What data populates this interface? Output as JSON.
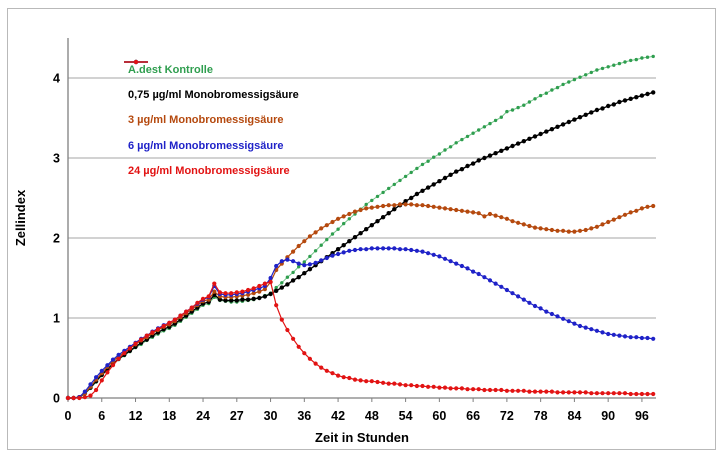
{
  "figure": {
    "background": "#ffffff",
    "border_color": "#b9b9b9"
  },
  "chart_data": {
    "type": "line",
    "title": "",
    "xlabel": "Zeit in Stunden",
    "ylabel": "Zellindex",
    "ylim": [
      0,
      4.5
    ],
    "yticks": [
      0,
      1,
      2,
      3,
      4
    ],
    "xticks": [
      "0",
      "6",
      "12",
      "18",
      "24",
      "27",
      "30",
      "36",
      "42",
      "48",
      "54",
      "60",
      "66",
      "72",
      "78",
      "84",
      "90",
      "96"
    ],
    "x_axis_note": "category axis in hours: 1 h steps 0-24 h, 0.5 h steps 24-30 h, 1 h steps 30-98 h",
    "grid": "horizontal",
    "legend_position": "top-left-inside",
    "axis_color": "#7f7f7f",
    "grid_color": "#a6a6a6",
    "hours": [
      0,
      1,
      2,
      3,
      4,
      5,
      6,
      7,
      8,
      9,
      10,
      11,
      12,
      13,
      14,
      15,
      16,
      17,
      18,
      19,
      20,
      21,
      22,
      23,
      24,
      24.5,
      25,
      25.5,
      26,
      26.5,
      27,
      27.5,
      28,
      28.5,
      29,
      29.5,
      30,
      31,
      32,
      33,
      34,
      35,
      36,
      37,
      38,
      39,
      40,
      41,
      42,
      43,
      44,
      45,
      46,
      47,
      48,
      49,
      50,
      51,
      52,
      53,
      54,
      55,
      56,
      57,
      58,
      59,
      60,
      61,
      62,
      63,
      64,
      65,
      66,
      67,
      68,
      69,
      70,
      71,
      72,
      73,
      74,
      75,
      76,
      77,
      78,
      79,
      80,
      81,
      82,
      83,
      84,
      85,
      86,
      87,
      88,
      89,
      90,
      91,
      92,
      93,
      94,
      95,
      96,
      97,
      98
    ],
    "series": [
      {
        "name": "A.dest Kontrolle",
        "color": "#2f9e4f",
        "line_color": "#74c489",
        "line_width": 1,
        "marker_radius": 1.7,
        "values": [
          0,
          0,
          0,
          0.05,
          0.12,
          0.2,
          0.28,
          0.35,
          0.42,
          0.48,
          0.53,
          0.58,
          0.63,
          0.67,
          0.72,
          0.76,
          0.8,
          0.84,
          0.87,
          0.91,
          0.96,
          1.01,
          1.06,
          1.11,
          1.16,
          1.18,
          1.26,
          1.22,
          1.21,
          1.2,
          1.2,
          1.21,
          1.22,
          1.23,
          1.25,
          1.28,
          1.31,
          1.38,
          1.44,
          1.51,
          1.57,
          1.64,
          1.7,
          1.77,
          1.84,
          1.91,
          1.98,
          2.05,
          2.11,
          2.18,
          2.24,
          2.3,
          2.36,
          2.42,
          2.47,
          2.52,
          2.57,
          2.62,
          2.67,
          2.72,
          2.77,
          2.82,
          2.87,
          2.92,
          2.96,
          3.01,
          3.05,
          3.1,
          3.14,
          3.19,
          3.23,
          3.27,
          3.31,
          3.35,
          3.39,
          3.43,
          3.47,
          3.51,
          3.58,
          3.6,
          3.63,
          3.66,
          3.7,
          3.74,
          3.78,
          3.81,
          3.85,
          3.88,
          3.92,
          3.95,
          3.98,
          4.01,
          4.04,
          4.07,
          4.1,
          4.12,
          4.14,
          4.16,
          4.18,
          4.2,
          4.22,
          4.23,
          4.25,
          4.26,
          4.27
        ]
      },
      {
        "name": "0,75 µg/ml Monobromessigsäure",
        "color": "#000000",
        "line_color": "#000000",
        "line_width": 1.4,
        "marker_radius": 2.2,
        "values": [
          0,
          0,
          0.01,
          0.06,
          0.13,
          0.21,
          0.29,
          0.36,
          0.43,
          0.49,
          0.54,
          0.59,
          0.64,
          0.69,
          0.73,
          0.78,
          0.82,
          0.86,
          0.89,
          0.93,
          0.98,
          1.03,
          1.08,
          1.13,
          1.18,
          1.2,
          1.29,
          1.23,
          1.22,
          1.22,
          1.22,
          1.23,
          1.23,
          1.24,
          1.25,
          1.27,
          1.3,
          1.34,
          1.38,
          1.42,
          1.47,
          1.51,
          1.56,
          1.61,
          1.66,
          1.71,
          1.76,
          1.81,
          1.86,
          1.91,
          1.96,
          2.01,
          2.06,
          2.11,
          2.16,
          2.21,
          2.26,
          2.31,
          2.36,
          2.41,
          2.46,
          2.5,
          2.55,
          2.59,
          2.63,
          2.67,
          2.71,
          2.75,
          2.79,
          2.83,
          2.86,
          2.9,
          2.93,
          2.97,
          3.0,
          3.03,
          3.06,
          3.09,
          3.12,
          3.15,
          3.18,
          3.21,
          3.24,
          3.27,
          3.3,
          3.33,
          3.36,
          3.39,
          3.42,
          3.45,
          3.48,
          3.51,
          3.54,
          3.57,
          3.6,
          3.62,
          3.65,
          3.67,
          3.7,
          3.72,
          3.74,
          3.76,
          3.78,
          3.8,
          3.82
        ]
      },
      {
        "name": "3 µg/ml Monobromessigsäure",
        "color": "#b5490e",
        "line_color": "#b5490e",
        "line_width": 1.2,
        "marker_radius": 2.1,
        "values": [
          0,
          0,
          0.01,
          0.06,
          0.14,
          0.23,
          0.31,
          0.39,
          0.46,
          0.52,
          0.57,
          0.62,
          0.67,
          0.72,
          0.76,
          0.81,
          0.85,
          0.89,
          0.92,
          0.96,
          1.01,
          1.06,
          1.11,
          1.16,
          1.21,
          1.23,
          1.33,
          1.27,
          1.26,
          1.26,
          1.27,
          1.28,
          1.29,
          1.31,
          1.33,
          1.36,
          1.45,
          1.6,
          1.68,
          1.76,
          1.83,
          1.9,
          1.96,
          2.02,
          2.07,
          2.12,
          2.16,
          2.2,
          2.24,
          2.27,
          2.3,
          2.33,
          2.35,
          2.37,
          2.38,
          2.39,
          2.4,
          2.41,
          2.41,
          2.42,
          2.42,
          2.42,
          2.41,
          2.41,
          2.4,
          2.39,
          2.38,
          2.37,
          2.36,
          2.35,
          2.34,
          2.33,
          2.32,
          2.31,
          2.27,
          2.3,
          2.28,
          2.26,
          2.24,
          2.21,
          2.19,
          2.17,
          2.15,
          2.13,
          2.12,
          2.11,
          2.1,
          2.09,
          2.09,
          2.08,
          2.08,
          2.09,
          2.1,
          2.12,
          2.14,
          2.17,
          2.2,
          2.23,
          2.26,
          2.29,
          2.32,
          2.34,
          2.37,
          2.39,
          2.4
        ]
      },
      {
        "name": "6 µg/ml Monobromessigsäure",
        "color": "#1f22c8",
        "line_color": "#1f22c8",
        "line_width": 1.2,
        "marker_radius": 2.1,
        "values": [
          0,
          0,
          0.01,
          0.08,
          0.17,
          0.26,
          0.34,
          0.41,
          0.48,
          0.54,
          0.59,
          0.64,
          0.69,
          0.74,
          0.78,
          0.83,
          0.87,
          0.91,
          0.94,
          0.98,
          1.03,
          1.08,
          1.13,
          1.18,
          1.23,
          1.26,
          1.4,
          1.3,
          1.29,
          1.29,
          1.3,
          1.31,
          1.33,
          1.35,
          1.37,
          1.4,
          1.5,
          1.65,
          1.71,
          1.73,
          1.71,
          1.68,
          1.66,
          1.67,
          1.69,
          1.72,
          1.75,
          1.78,
          1.8,
          1.82,
          1.84,
          1.85,
          1.86,
          1.86,
          1.87,
          1.87,
          1.87,
          1.87,
          1.87,
          1.86,
          1.86,
          1.85,
          1.84,
          1.83,
          1.81,
          1.79,
          1.77,
          1.74,
          1.71,
          1.68,
          1.65,
          1.62,
          1.58,
          1.55,
          1.51,
          1.47,
          1.43,
          1.39,
          1.35,
          1.31,
          1.27,
          1.23,
          1.19,
          1.15,
          1.12,
          1.08,
          1.05,
          1.02,
          0.99,
          0.96,
          0.93,
          0.9,
          0.88,
          0.86,
          0.84,
          0.82,
          0.8,
          0.79,
          0.78,
          0.77,
          0.76,
          0.76,
          0.75,
          0.75,
          0.74
        ]
      },
      {
        "name": "24 µg/ml Monobromessigsäure",
        "color": "#e21313",
        "line_color": "#e21313",
        "line_width": 1.2,
        "marker_radius": 2.1,
        "values": [
          0,
          0,
          0,
          0.01,
          0.03,
          0.1,
          0.22,
          0.32,
          0.41,
          0.49,
          0.56,
          0.62,
          0.68,
          0.73,
          0.78,
          0.82,
          0.86,
          0.9,
          0.94,
          0.98,
          1.03,
          1.08,
          1.13,
          1.19,
          1.24,
          1.27,
          1.43,
          1.32,
          1.31,
          1.31,
          1.32,
          1.33,
          1.35,
          1.37,
          1.4,
          1.43,
          1.45,
          1.16,
          0.98,
          0.85,
          0.74,
          0.64,
          0.56,
          0.49,
          0.43,
          0.38,
          0.34,
          0.31,
          0.28,
          0.26,
          0.25,
          0.23,
          0.22,
          0.21,
          0.21,
          0.2,
          0.19,
          0.18,
          0.18,
          0.17,
          0.16,
          0.16,
          0.15,
          0.15,
          0.14,
          0.14,
          0.13,
          0.13,
          0.12,
          0.12,
          0.12,
          0.11,
          0.11,
          0.11,
          0.1,
          0.1,
          0.1,
          0.1,
          0.09,
          0.09,
          0.09,
          0.09,
          0.08,
          0.08,
          0.08,
          0.08,
          0.08,
          0.07,
          0.07,
          0.07,
          0.07,
          0.07,
          0.07,
          0.06,
          0.06,
          0.06,
          0.06,
          0.06,
          0.06,
          0.06,
          0.05,
          0.05,
          0.05,
          0.05,
          0.05
        ]
      }
    ]
  }
}
